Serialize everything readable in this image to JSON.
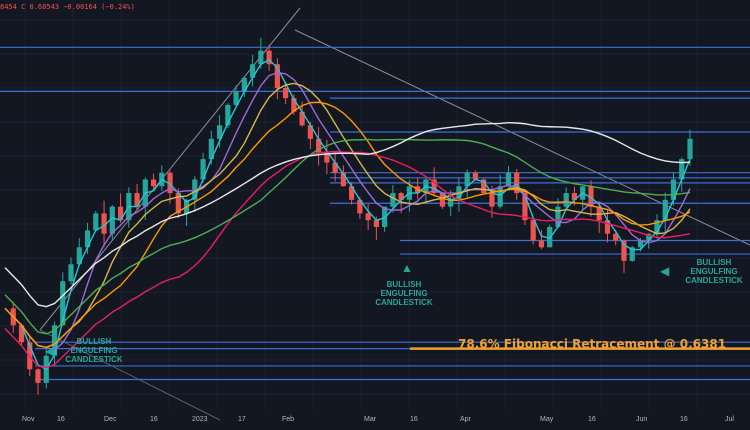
{
  "ohlc_text": "8454  C 0.68543  −0.00164 (−0.24%)",
  "annotations": {
    "left": [
      "BULLISH",
      "ENGULFING",
      "CANDLESTICK"
    ],
    "middle": [
      "BULLISH",
      "ENGULFING",
      "CANDLESTICK"
    ],
    "right": [
      "BULLISH",
      "ENGULFING",
      "CANDLESTICK"
    ]
  },
  "fib_label": "78.6% Fibonacci Retracement @ 0.6381",
  "colors": {
    "background": "#131722",
    "up": "#26a69a",
    "down": "#ef5350",
    "level_lines": "#3d6fd6",
    "fib": "#f0a030",
    "ma_white": "#e8e8e8",
    "ma_green": "#4caf50",
    "ma_pink": "#e91e63",
    "ma_orange": "#ff9800",
    "ma_yellow": "#d4b84a",
    "ma_purple": "#9c6ad8",
    "ma_cyan": "#26c6da"
  },
  "chart_data": {
    "type": "line",
    "xaxis_ticks": [
      "Nov",
      "16",
      "Dec",
      "16",
      "2023",
      "17",
      "Feb",
      "Mar",
      "16",
      "Apr",
      "May",
      "16",
      "Jun",
      "16",
      "Jul"
    ],
    "price_path": [
      0.65,
      0.645,
      0.64,
      0.632,
      0.628,
      0.636,
      0.645,
      0.658,
      0.663,
      0.668,
      0.673,
      0.678,
      0.672,
      0.68,
      0.676,
      0.684,
      0.68,
      0.688,
      0.686,
      0.69,
      0.684,
      0.678,
      0.682,
      0.688,
      0.694,
      0.7,
      0.704,
      0.71,
      0.714,
      0.718,
      0.722,
      0.726,
      0.722,
      0.715,
      0.712,
      0.708,
      0.704,
      0.7,
      0.696,
      0.693,
      0.69,
      0.686,
      0.682,
      0.678,
      0.676,
      0.674,
      0.68,
      0.684,
      0.682,
      0.686,
      0.684,
      0.688,
      0.684,
      0.68,
      0.682,
      0.686,
      0.69,
      0.688,
      0.684,
      0.68,
      0.686,
      0.69,
      0.684,
      0.676,
      0.67,
      0.668,
      0.674,
      0.68,
      0.684,
      0.682,
      0.686,
      0.68,
      0.676,
      0.672,
      0.67,
      0.664,
      0.668,
      0.67,
      0.672,
      0.676,
      0.682,
      0.688,
      0.694,
      0.7
    ],
    "levels": [
      0.727,
      0.714,
      0.712,
      0.702,
      0.69,
      0.6885,
      0.687,
      0.681,
      0.67,
      0.666,
      0.64,
      0.6381,
      0.633,
      0.629
    ],
    "fib_level": 0.6381,
    "ylim": [
      0.62,
      0.738
    ]
  }
}
